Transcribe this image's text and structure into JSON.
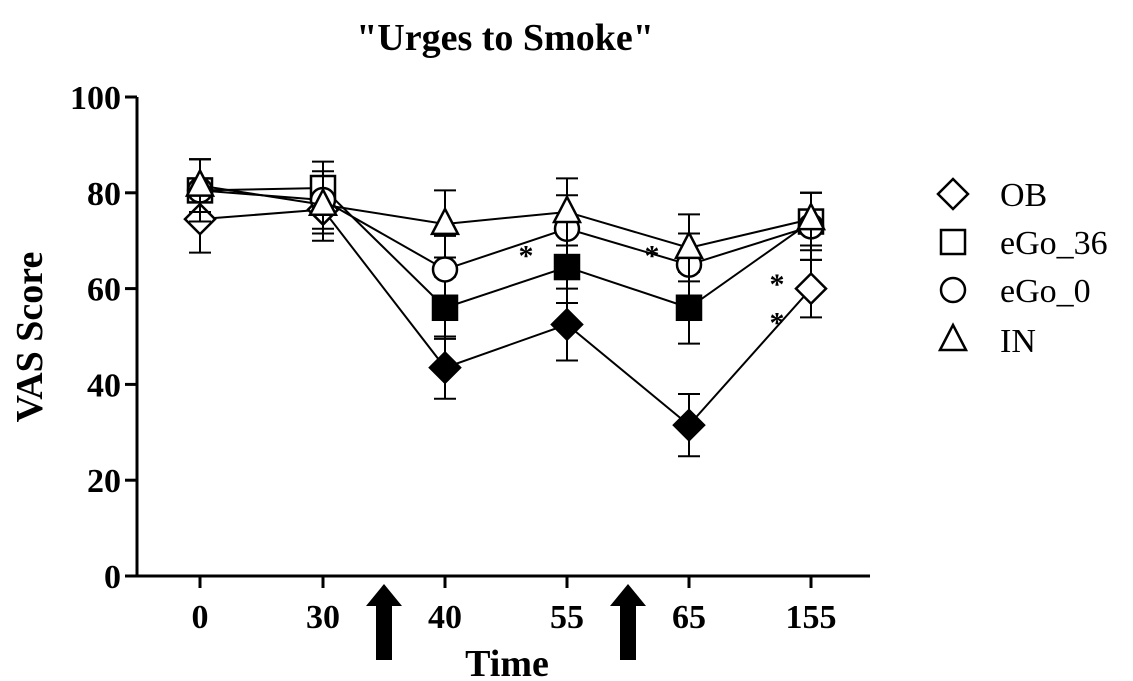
{
  "chart_data": {
    "type": "line",
    "title": "\"Urges to Smoke\"",
    "xlabel": "Time",
    "ylabel": "VAS Score",
    "categories": [
      "0",
      "30",
      "40",
      "55",
      "65",
      "155"
    ],
    "ylim": [
      0,
      100
    ],
    "yticks": [
      "0",
      "20",
      "40",
      "60",
      "80",
      "100"
    ],
    "series": [
      {
        "name": "OB",
        "marker": "diamond",
        "values": [
          74.5,
          76.5,
          43.5,
          52.5,
          31.5,
          60
        ],
        "errors": [
          7,
          6.5,
          6.5,
          7.5,
          6.5,
          6
        ],
        "filled": [
          false,
          false,
          true,
          true,
          true,
          false
        ]
      },
      {
        "name": "eGo_36",
        "marker": "square",
        "values": [
          80.5,
          81,
          56,
          64.5,
          56,
          74
        ],
        "errors": [
          6.5,
          5.5,
          6.5,
          7.5,
          7.5,
          6
        ],
        "filled": [
          false,
          false,
          true,
          true,
          true,
          false
        ]
      },
      {
        "name": "eGo_0",
        "marker": "circle",
        "values": [
          80.5,
          78.5,
          64,
          72.5,
          65,
          73
        ],
        "errors": [
          6.5,
          6,
          7,
          7,
          6.5,
          7
        ],
        "filled": [
          false,
          false,
          false,
          false,
          false,
          false
        ]
      },
      {
        "name": "IN",
        "marker": "triangle",
        "values": [
          81.5,
          77.5,
          73.5,
          76,
          68.5,
          74.5
        ],
        "errors": [
          5.5,
          6,
          7,
          7,
          7,
          5.5
        ],
        "filled": [
          false,
          false,
          false,
          false,
          false,
          false
        ]
      }
    ],
    "legend_position": "right",
    "annotations": [
      {
        "text": "*",
        "x": "between 40 and 55",
        "y": 69
      },
      {
        "text": "*",
        "x": "between 55 and 65",
        "y": 69
      },
      {
        "text": "*",
        "x": "between 65 and 155",
        "y": 63
      },
      {
        "text": "*",
        "x": "between 65 and 155",
        "y": 55
      }
    ],
    "arrows_at": [
      "between 30 and 40",
      "between 55 and 65"
    ]
  }
}
